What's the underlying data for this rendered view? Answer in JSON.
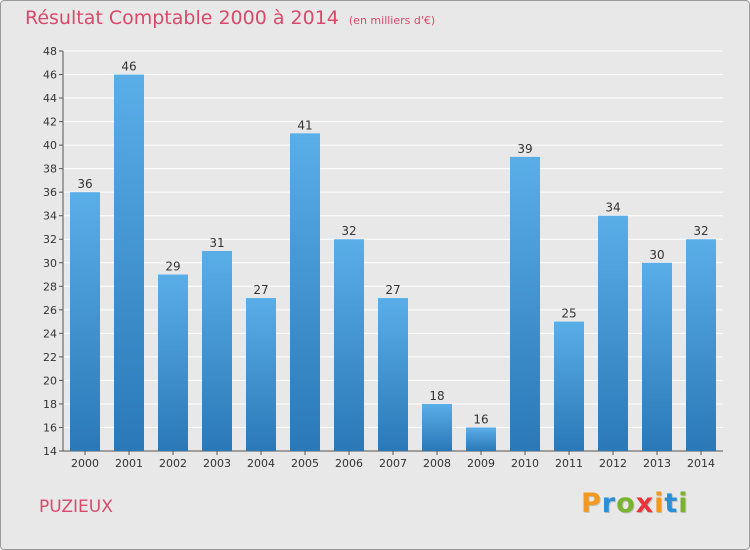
{
  "title": "Résultat Comptable 2000 à 2014",
  "subtitle": "(en milliers d'€)",
  "commune": "PUZIEUX",
  "logo": {
    "letters": [
      "P",
      "r",
      "o",
      "x",
      "i",
      "t",
      "i"
    ],
    "colors": [
      "#f39a1e",
      "#2b8fd6",
      "#7ab32e",
      "#e8353a",
      "#f39a1e",
      "#2b8fd6",
      "#7ab32e"
    ]
  },
  "colors": {
    "bar_top": "#5aaee8",
    "bar_bottom": "#2a78b8",
    "text_accent": "#d84a6a",
    "grid": "#ffffff"
  },
  "chart_data": {
    "type": "bar",
    "title": "Résultat Comptable 2000 à 2014",
    "subtitle": "(en milliers d'€)",
    "xlabel": "",
    "ylabel": "",
    "categories": [
      "2000",
      "2001",
      "2002",
      "2003",
      "2004",
      "2005",
      "2006",
      "2007",
      "2008",
      "2009",
      "2010",
      "2011",
      "2012",
      "2013",
      "2014"
    ],
    "values": [
      36,
      46,
      29,
      31,
      27,
      41,
      32,
      27,
      18,
      16,
      39,
      25,
      34,
      30,
      32
    ],
    "ylim": [
      14,
      48
    ],
    "yticks": [
      14,
      16,
      18,
      20,
      22,
      24,
      26,
      28,
      30,
      32,
      34,
      36,
      38,
      40,
      42,
      44,
      46,
      48
    ],
    "grid": true
  }
}
